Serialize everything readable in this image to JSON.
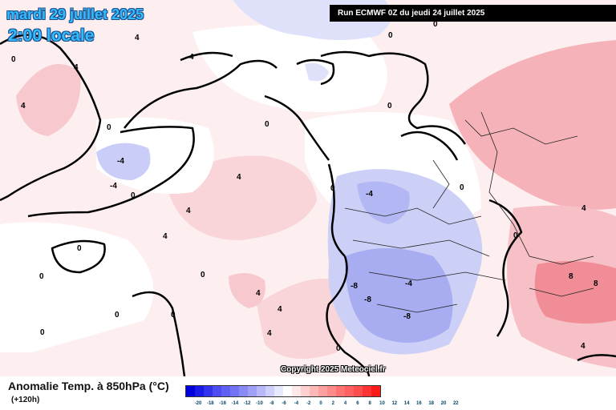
{
  "overlay": {
    "date": "mardi 29 juillet 2025",
    "time": "2:00 locale",
    "run": "Run ECMWF 0Z du jeudi 24 juillet 2025",
    "copyright": "Copyright 2025 Meteociel.fr"
  },
  "legend": {
    "title": "Anomalie Temp. à 850hPa (°C)",
    "subtitle": "(+120h)",
    "ticks": [
      "-20",
      "-18",
      "-16",
      "-14",
      "-12",
      "-10",
      "-8",
      "-6",
      "-4",
      "-2",
      "0",
      "2",
      "4",
      "6",
      "8",
      "10",
      "12",
      "14",
      "16",
      "18",
      "20",
      "22"
    ],
    "colors": [
      "#0000dd",
      "#1a1ae6",
      "#3333ee",
      "#4d4df2",
      "#6060f4",
      "#7373f6",
      "#8a8af7",
      "#a0a0f9",
      "#b8b8fb",
      "#d0d0fc",
      "#e8e8fe",
      "#ffffff",
      "#ffe8e8",
      "#ffd0d0",
      "#ffb8b8",
      "#ffa0a0",
      "#ff8a8a",
      "#ff7373",
      "#ff6060",
      "#ff4d4d",
      "#ff3333",
      "#ff1a1a"
    ]
  },
  "contour_labels": [
    "0",
    "4",
    "-4",
    "8",
    "-8"
  ],
  "colors": {
    "cool": "#bcc3f5",
    "cool_strong": "#9ea4f0",
    "warm": "#f8d2d6",
    "warm_strong": "#f0a2a8",
    "neutral": "#ffffff"
  }
}
